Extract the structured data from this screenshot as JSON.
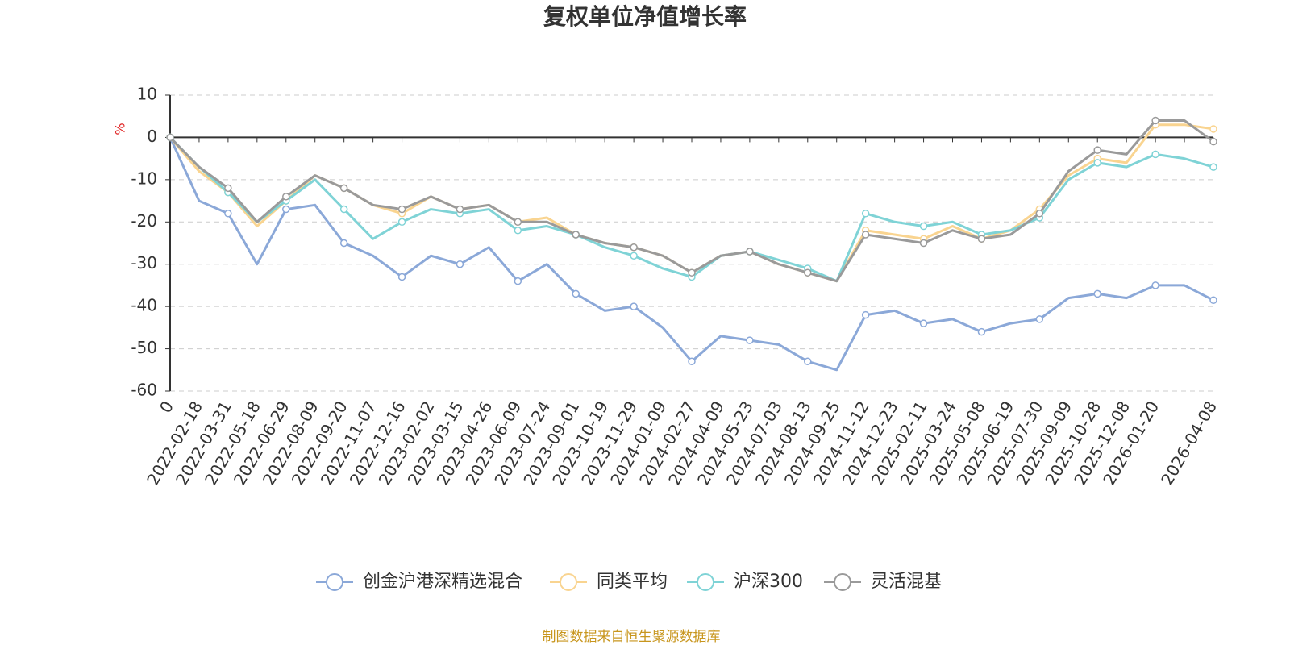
{
  "chart_data": {
    "type": "line",
    "title": "复权单位净值增长率",
    "y_unit": "%",
    "source": "制图数据来自恒生聚源数据库",
    "categories": [
      "0",
      "2022-02-18",
      "2022-03-31",
      "2022-05-18",
      "2022-06-29",
      "2022-08-09",
      "2022-09-20",
      "2022-11-07",
      "2022-12-16",
      "2023-02-02",
      "2023-03-15",
      "2023-04-26",
      "2023-06-09",
      "2023-07-24",
      "2023-09-01",
      "2023-10-19",
      "2023-11-29",
      "2024-01-09",
      "2024-02-27",
      "2024-04-09",
      "2024-05-23",
      "2024-07-03",
      "2024-08-13",
      "2024-09-25",
      "2024-11-12",
      "2024-12-23",
      "2025-02-11",
      "2025-03-24",
      "2025-05-08",
      "2025-06-19",
      "2025-07-30",
      "2025-09-09",
      "2025-10-28",
      "2025-12-08",
      "2026-01-20",
      null,
      "2026-04-08"
    ],
    "series": [
      {
        "name": "创金沪港深精选混合",
        "color": "#8ba8d8",
        "values": [
          0,
          -15,
          -18,
          -30,
          -17,
          -16,
          -25,
          -28,
          -33,
          -28,
          -30,
          -26,
          -34,
          -30,
          -37,
          -41,
          -40,
          -45,
          -53,
          -47,
          -48,
          -49,
          -53,
          -55,
          -42,
          -41,
          -44,
          -43,
          -46,
          -44,
          -43,
          -38,
          -37,
          -38,
          -35,
          -35,
          -38.5
        ]
      },
      {
        "name": "同类平均",
        "color": "#f9d490",
        "values": [
          0,
          -8,
          -13,
          -21,
          -15,
          -9,
          -12,
          -16,
          -18,
          -14,
          -17,
          -16,
          -20,
          -19,
          -23,
          -25,
          -26,
          -28,
          -32,
          -28,
          -27,
          -30,
          -32,
          -34,
          -22,
          -23,
          -24,
          -21,
          -24,
          -22,
          -17,
          -9,
          -5,
          -6,
          3,
          3,
          2
        ]
      },
      {
        "name": "沪深300",
        "color": "#7fd3d6",
        "values": [
          0,
          -7,
          -13,
          -20,
          -15,
          -10,
          -17,
          -24,
          -20,
          -17,
          -18,
          -17,
          -22,
          -21,
          -23,
          -26,
          -28,
          -31,
          -33,
          -28,
          -27,
          -29,
          -31,
          -34,
          -18,
          -20,
          -21,
          -20,
          -23,
          -22,
          -19,
          -10,
          -6,
          -7,
          -4,
          -5,
          -7
        ]
      },
      {
        "name": "灵活混基",
        "color": "#9a9a9a",
        "values": [
          0,
          -7,
          -12,
          -20,
          -14,
          -9,
          -12,
          -16,
          -17,
          -14,
          -17,
          -16,
          -20,
          -20,
          -23,
          -25,
          -26,
          -28,
          -32,
          -28,
          -27,
          -30,
          -32,
          -34,
          -23,
          -24,
          -25,
          -22,
          -24,
          -23,
          -18,
          -8,
          -3,
          -4,
          4,
          4,
          -1
        ]
      }
    ],
    "ylim": [
      -60,
      10
    ],
    "yticks": [
      -60,
      -50,
      -40,
      -30,
      -20,
      -10,
      0,
      10
    ],
    "grid": true
  }
}
